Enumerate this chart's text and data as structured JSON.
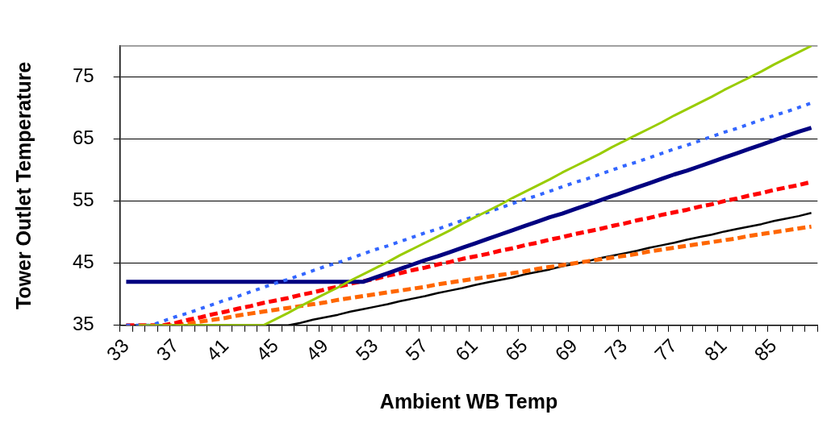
{
  "chart_data": {
    "type": "line",
    "xlabel": "Ambient WB Temp",
    "ylabel": "Tower Outlet Temperature",
    "categories": [
      "33",
      null,
      null,
      null,
      "37",
      null,
      null,
      null,
      "41",
      null,
      null,
      null,
      "45",
      null,
      null,
      null,
      "49",
      null,
      null,
      null,
      "53",
      null,
      null,
      null,
      "57",
      null,
      null,
      null,
      "61",
      null,
      null,
      null,
      "65",
      null,
      null,
      null,
      "69",
      null,
      null,
      null,
      "73",
      null,
      null,
      null,
      "77",
      null,
      null,
      null,
      "81",
      null,
      null,
      null,
      "85",
      null,
      null,
      null
    ],
    "ylim": [
      35,
      80
    ],
    "yticks": [
      35,
      45,
      55,
      65,
      75
    ],
    "grid": "y",
    "legend": false,
    "marker": "none",
    "series": [
      {
        "color": "#99cc00",
        "line_style": "solid",
        "values": [
          null,
          35,
          35,
          35,
          35,
          35,
          35,
          35,
          35,
          35,
          35,
          35,
          36.0,
          37.0,
          38.1,
          39.1,
          40.1,
          41.1,
          42.2,
          43.2,
          44.2,
          45.2,
          46.3,
          47.3,
          48.3,
          49.3,
          50.3,
          51.4,
          52.4,
          53.4,
          54.4,
          55.5,
          56.5,
          57.5,
          58.5,
          59.6,
          60.6,
          61.6,
          62.6,
          63.7,
          64.7,
          65.7,
          66.7,
          67.7,
          68.8,
          69.8,
          70.8,
          71.8,
          72.9,
          73.9,
          74.9,
          75.9,
          77.0,
          78.0,
          79.0,
          80.0
        ]
      },
      {
        "color": "#3366ff",
        "line_style": "dotted",
        "values": [
          35,
          35,
          35,
          35.7,
          36.4,
          37.0,
          37.7,
          38.4,
          39.1,
          39.7,
          40.4,
          41.1,
          41.8,
          42.4,
          43.1,
          43.8,
          44.5,
          45.1,
          45.8,
          46.5,
          47.2,
          47.8,
          48.5,
          49.2,
          49.9,
          50.5,
          51.2,
          51.9,
          52.6,
          53.2,
          53.9,
          54.6,
          55.3,
          55.9,
          56.6,
          57.3,
          58.0,
          58.6,
          59.3,
          60.0,
          60.7,
          61.3,
          62.0,
          62.7,
          63.4,
          64.0,
          64.7,
          65.4,
          66.1,
          66.7,
          67.4,
          68.1,
          68.8,
          69.4,
          70.1,
          70.8
        ]
      },
      {
        "color": "#000080",
        "line_style": "solid",
        "values": [
          42,
          42,
          42,
          42,
          42,
          42,
          42,
          42,
          42,
          42,
          42,
          42,
          42,
          42,
          42,
          42,
          42,
          42,
          42,
          42,
          42.7,
          43.4,
          44.1,
          44.8,
          45.5,
          46.1,
          46.8,
          47.5,
          48.2,
          48.9,
          49.6,
          50.3,
          51.0,
          51.7,
          52.4,
          53.0,
          53.7,
          54.4,
          55.1,
          55.8,
          56.5,
          57.2,
          57.9,
          58.6,
          59.3,
          59.9,
          60.6,
          61.3,
          62.0,
          62.7,
          63.4,
          64.1,
          64.8,
          65.5,
          66.2,
          66.8
        ]
      },
      {
        "color": "#ff0000",
        "line_style": "dashed",
        "values": [
          35,
          35,
          35,
          35,
          35.4,
          35.9,
          36.3,
          36.8,
          37.2,
          37.7,
          38.1,
          38.6,
          39.0,
          39.4,
          39.9,
          40.3,
          40.8,
          41.2,
          41.7,
          42.1,
          42.5,
          43.0,
          43.4,
          43.9,
          44.3,
          44.8,
          45.2,
          45.7,
          46.1,
          46.5,
          47.0,
          47.4,
          47.9,
          48.3,
          48.8,
          49.2,
          49.7,
          50.1,
          50.5,
          51.0,
          51.4,
          51.9,
          52.3,
          52.8,
          53.2,
          53.6,
          54.1,
          54.5,
          55.0,
          55.4,
          55.9,
          56.3,
          56.8,
          57.2,
          57.6,
          58.1
        ]
      },
      {
        "color": "#ff6600",
        "line_style": "dashed",
        "values": [
          null,
          null,
          null,
          35,
          35,
          35.3,
          35.6,
          35.9,
          36.2,
          36.6,
          36.9,
          37.2,
          37.5,
          37.8,
          38.1,
          38.4,
          38.7,
          39.1,
          39.4,
          39.7,
          40.0,
          40.3,
          40.6,
          40.9,
          41.2,
          41.6,
          41.9,
          42.2,
          42.5,
          42.8,
          43.1,
          43.4,
          43.7,
          44.1,
          44.4,
          44.7,
          45.0,
          45.3,
          45.6,
          45.9,
          46.2,
          46.5,
          46.9,
          47.2,
          47.5,
          47.8,
          48.1,
          48.4,
          48.7,
          49.0,
          49.4,
          49.7,
          50.0,
          50.3,
          50.6,
          50.9
        ]
      },
      {
        "color": "#000000",
        "line_style": "solid",
        "values": [
          35,
          35,
          35,
          35,
          35,
          35,
          35,
          35,
          35,
          35,
          35,
          35,
          35,
          35,
          35.4,
          35.9,
          36.3,
          36.7,
          37.2,
          37.6,
          38.0,
          38.4,
          38.9,
          39.3,
          39.7,
          40.2,
          40.6,
          41.0,
          41.5,
          41.9,
          42.3,
          42.7,
          43.2,
          43.6,
          44.0,
          44.5,
          44.9,
          45.3,
          45.8,
          46.2,
          46.6,
          47.0,
          47.5,
          47.9,
          48.3,
          48.8,
          49.2,
          49.6,
          50.1,
          50.5,
          50.9,
          51.3,
          51.8,
          52.2,
          52.6,
          53.1
        ]
      }
    ]
  }
}
